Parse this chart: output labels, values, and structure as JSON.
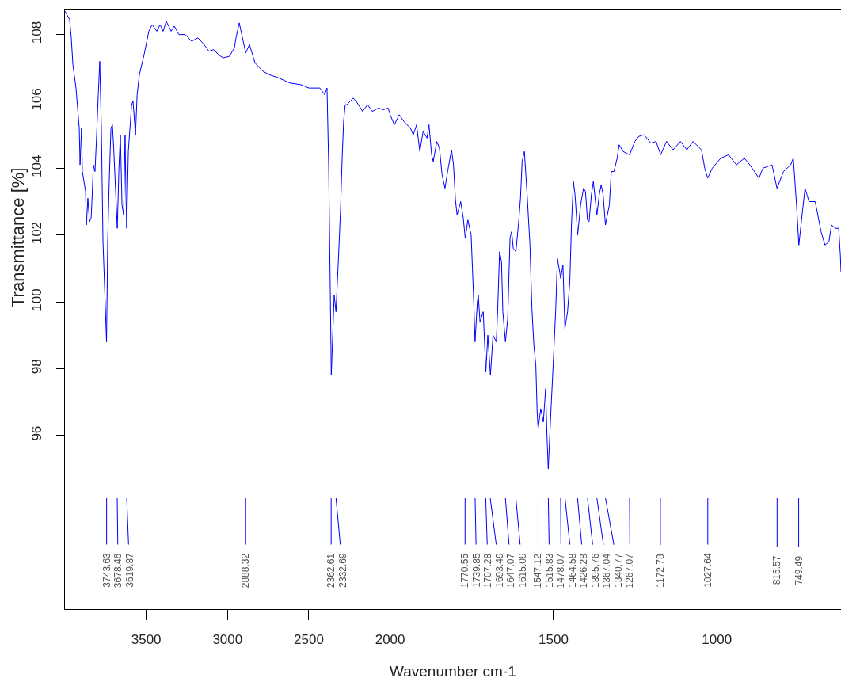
{
  "chart_data": [
    {
      "type": "line",
      "ylabel": "Transmittance [%]",
      "xlim": [
        4000,
        2000
      ],
      "xticks": [
        3500,
        3000,
        2500
      ],
      "ylim": [
        90.8,
        108.75
      ],
      "yticks": [
        96,
        98,
        100,
        102,
        104,
        106,
        108
      ],
      "x": [
        4000,
        3971,
        3961,
        3951,
        3932,
        3912,
        3907,
        3898,
        3893,
        3873,
        3868,
        3859,
        3849,
        3839,
        3834,
        3825,
        3815,
        3805,
        3795,
        3786,
        3776,
        3766,
        3744,
        3737,
        3727,
        3717,
        3708,
        3700,
        3678,
        3668,
        3659,
        3649,
        3639,
        3630,
        3625,
        3620,
        3610,
        3590,
        3581,
        3566,
        3556,
        3542,
        3513,
        3484,
        3464,
        3435,
        3415,
        3396,
        3377,
        3347,
        3328,
        3299,
        3260,
        3221,
        3182,
        3144,
        3114,
        3085,
        3056,
        3027,
        2988,
        2958,
        2948,
        2928,
        2888,
        2865,
        2831,
        2782,
        2743,
        2685,
        2617,
        2549,
        2500,
        2432,
        2403,
        2388,
        2378,
        2368,
        2362,
        2344,
        2333,
        2320,
        2305,
        2295,
        2286,
        2276,
        2266,
        2227,
        2208,
        2169,
        2139,
        2110,
        2071,
        2042,
        2012,
        2000
      ],
      "series": [
        {
          "color": "#0000ff",
          "values": [
            108.7,
            108.45,
            107.9,
            107.1,
            106.4,
            105.2,
            104.1,
            105.2,
            103.9,
            103.3,
            102.3,
            103.1,
            102.4,
            102.5,
            103.0,
            104.1,
            103.9,
            105.0,
            106.2,
            107.2,
            105.2,
            101.8,
            98.8,
            101.8,
            103.7,
            105.2,
            105.3,
            104.6,
            102.2,
            104.0,
            105.0,
            102.9,
            102.6,
            105.0,
            103.3,
            102.2,
            104.5,
            105.9,
            106.0,
            105.0,
            106.2,
            106.8,
            107.4,
            108.1,
            108.3,
            108.1,
            108.3,
            108.1,
            108.4,
            108.1,
            108.25,
            108.0,
            108.0,
            107.8,
            107.9,
            107.7,
            107.5,
            107.55,
            107.4,
            107.3,
            107.35,
            107.6,
            107.9,
            108.35,
            107.45,
            107.7,
            107.15,
            106.9,
            106.8,
            106.7,
            106.55,
            106.5,
            106.4,
            106.4,
            106.2,
            106.4,
            104.1,
            100.3,
            97.8,
            100.2,
            99.7,
            101.05,
            102.75,
            104.3,
            105.4,
            105.9,
            105.9,
            106.1,
            106.0,
            105.7,
            105.9,
            105.7,
            105.8,
            105.75,
            105.8,
            105.6
          ]
        }
      ],
      "annotations": [
        {
          "text": "3743.63",
          "x": 3743.63
        },
        {
          "text": "3678.46",
          "x": 3678.46
        },
        {
          "text": "3619.87",
          "x": 3619.87
        },
        {
          "text": "2888.32",
          "x": 2888.32
        },
        {
          "text": "2362.61",
          "x": 2362.61
        },
        {
          "text": "2332.69",
          "x": 2332.69
        }
      ]
    },
    {
      "type": "line",
      "xlabel": "Wavenumber cm-1",
      "xlim": [
        2000,
        620
      ],
      "xticks": [
        2000,
        1500,
        1000
      ],
      "ylim": [
        90.8,
        108.75
      ],
      "yticks": [
        96,
        98,
        100,
        102,
        104,
        106,
        108
      ],
      "tick_labels": "x",
      "x": [
        2000,
        1987,
        1972,
        1958,
        1938,
        1929,
        1919,
        1909,
        1899,
        1887,
        1881,
        1873,
        1868,
        1857,
        1849,
        1841,
        1832,
        1824,
        1812,
        1806,
        1800,
        1795,
        1784,
        1776,
        1770,
        1762,
        1752,
        1748,
        1744,
        1740,
        1733,
        1730,
        1725,
        1715,
        1707,
        1701,
        1693,
        1685,
        1675,
        1671,
        1665,
        1659,
        1655,
        1647,
        1640,
        1633,
        1628,
        1623,
        1615,
        1606,
        1601,
        1596,
        1589,
        1580,
        1572,
        1566,
        1560,
        1554,
        1550,
        1547,
        1539,
        1531,
        1524,
        1520,
        1516,
        1507,
        1501,
        1493,
        1488,
        1481,
        1478,
        1471,
        1465,
        1457,
        1450,
        1445,
        1439,
        1434,
        1426,
        1417,
        1408,
        1402,
        1396,
        1391,
        1384,
        1378,
        1367,
        1360,
        1354,
        1348,
        1341,
        1329,
        1323,
        1315,
        1305,
        1299,
        1287,
        1267,
        1251,
        1239,
        1223,
        1202,
        1186,
        1172,
        1154,
        1134,
        1111,
        1092,
        1073,
        1047,
        1037,
        1028,
        1014,
        988,
        964,
        940,
        916,
        899,
        871,
        859,
        831,
        816,
        796,
        774,
        766,
        756,
        749,
        738,
        730,
        718,
        699,
        681,
        669,
        657,
        649,
        637,
        627,
        622,
        620
      ],
      "series": [
        {
          "color": "#0000ff",
          "values": [
            105.6,
            105.3,
            105.6,
            105.4,
            105.2,
            105.0,
            105.3,
            104.5,
            105.1,
            104.9,
            105.3,
            104.4,
            104.2,
            104.8,
            104.6,
            103.8,
            103.4,
            103.9,
            104.55,
            104.1,
            103.05,
            102.6,
            103.0,
            102.5,
            101.9,
            102.45,
            102.0,
            101.0,
            100.0,
            98.8,
            100.0,
            100.2,
            99.4,
            99.7,
            97.9,
            99.0,
            97.8,
            99.0,
            98.8,
            99.7,
            101.5,
            101.2,
            99.7,
            98.8,
            99.5,
            101.9,
            102.1,
            101.6,
            101.5,
            102.45,
            103.1,
            104.2,
            104.5,
            103.1,
            101.7,
            99.8,
            98.7,
            98.1,
            96.7,
            96.2,
            96.8,
            96.4,
            97.4,
            96.0,
            95.0,
            96.9,
            98.1,
            99.8,
            101.3,
            100.9,
            100.7,
            101.1,
            99.2,
            99.7,
            100.6,
            102.3,
            103.6,
            103.2,
            102.0,
            102.9,
            103.4,
            103.3,
            102.45,
            102.4,
            103.2,
            103.6,
            102.6,
            103.2,
            103.5,
            103.2,
            102.3,
            102.9,
            103.9,
            103.9,
            104.3,
            104.7,
            104.5,
            104.4,
            104.8,
            104.95,
            105.0,
            104.75,
            104.8,
            104.4,
            104.8,
            104.55,
            104.8,
            104.55,
            104.8,
            104.55,
            104.0,
            103.7,
            104.0,
            104.3,
            104.4,
            104.1,
            104.3,
            104.1,
            103.7,
            104.0,
            104.1,
            103.4,
            103.9,
            104.1,
            104.3,
            102.9,
            101.7,
            102.7,
            103.4,
            103.0,
            103.0,
            102.1,
            101.7,
            101.8,
            102.3,
            102.2,
            102.2,
            101.4,
            100.9
          ]
        }
      ],
      "annotations": [
        {
          "text": "1770.55",
          "x": 1770.55
        },
        {
          "text": "1739.85",
          "x": 1739.85
        },
        {
          "text": "1707.28",
          "x": 1707.28
        },
        {
          "text": "1693.49",
          "x": 1693.49
        },
        {
          "text": "1647.07",
          "x": 1647.07
        },
        {
          "text": "1615.09",
          "x": 1615.09
        },
        {
          "text": "1547.12",
          "x": 1547.12
        },
        {
          "text": "1515.83",
          "x": 1515.83
        },
        {
          "text": "1478.07",
          "x": 1478.07
        },
        {
          "text": "1464.58",
          "x": 1464.58
        },
        {
          "text": "1426.28",
          "x": 1426.28
        },
        {
          "text": "1395.76",
          "x": 1395.76
        },
        {
          "text": "1367.04",
          "x": 1367.04
        },
        {
          "text": "1340.77",
          "x": 1340.77
        },
        {
          "text": "1267.07",
          "x": 1267.07
        },
        {
          "text": "1172.78",
          "x": 1172.78
        },
        {
          "text": "1027.64",
          "x": 1027.64
        },
        {
          "text": "815.57",
          "x": 815.57
        },
        {
          "text": "749.49",
          "x": 749.49
        }
      ]
    }
  ]
}
